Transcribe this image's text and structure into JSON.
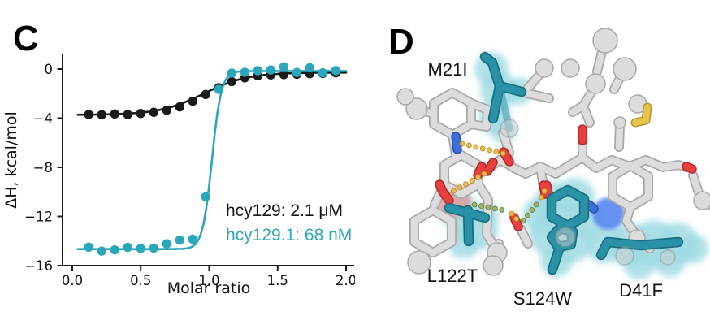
{
  "figure": {
    "panel_c_letter": "C",
    "panel_d_letter": "D"
  },
  "chart_data": {
    "type": "scatter",
    "description": "ITC binding isotherms (integrated heats) with sigmoidal fits",
    "title": "",
    "xlabel": "Molar ratio",
    "ylabel": "ΔH, kcal/mol",
    "xlim": [
      -0.07,
      2.06
    ],
    "ylim": [
      -16,
      1.2
    ],
    "xticks": [
      0,
      0.5,
      1,
      1.5,
      2
    ],
    "xtick_labels": [
      "0.0",
      "0.5",
      "1.0",
      "1.5",
      "2.0"
    ],
    "yticks": [
      0,
      -4,
      -8,
      -12,
      -16
    ],
    "ytick_labels": [
      "0",
      "−4",
      "−8",
      "−12",
      "−16"
    ],
    "grid": false,
    "legend_position": "lower right",
    "series": [
      {
        "name": "hcy129",
        "legend_label": "hcy129: 2.1 μM",
        "kd": "2.1 μM",
        "color": "#1a1a1a",
        "marker": "circle",
        "x": [
          0.12,
          0.215,
          0.31,
          0.405,
          0.5,
          0.595,
          0.69,
          0.785,
          0.88,
          0.975,
          1.07,
          1.165,
          1.26,
          1.355,
          1.45,
          1.545,
          1.64,
          1.735,
          1.83,
          1.925
        ],
        "y": [
          -3.7,
          -3.72,
          -3.66,
          -3.7,
          -3.62,
          -3.52,
          -3.35,
          -3.08,
          -2.62,
          -2.07,
          -1.52,
          -1.02,
          -0.72,
          -0.55,
          -0.48,
          -0.45,
          -0.42,
          -0.38,
          -0.35,
          -0.3
        ],
        "fit_sigmoid": {
          "base": -3.73,
          "amplitude": 3.45,
          "midpoint": 0.96,
          "width": 0.16
        }
      },
      {
        "name": "hcy129.1",
        "legend_label": "hcy129.1: 68 nM",
        "kd": "68 nM",
        "color": "#2aa7ba",
        "marker": "circle",
        "x": [
          0.12,
          0.215,
          0.31,
          0.405,
          0.5,
          0.595,
          0.69,
          0.785,
          0.88,
          0.975,
          1.07,
          1.165,
          1.26,
          1.355,
          1.45,
          1.545,
          1.64,
          1.735,
          1.83,
          1.925
        ],
        "y": [
          -14.5,
          -14.82,
          -14.72,
          -14.52,
          -14.6,
          -14.58,
          -14.22,
          -13.92,
          -13.85,
          -10.4,
          -1.65,
          -0.33,
          -0.26,
          -0.13,
          -0.07,
          0.18,
          -0.28,
          0.1,
          -0.3,
          -0.12
        ],
        "fit_sigmoid": {
          "base": -14.66,
          "amplitude": 14.5,
          "midpoint": 1.02,
          "width": 0.034
        }
      }
    ]
  },
  "structure": {
    "residue_labels": [
      {
        "id": "M21I",
        "label": "M21I"
      },
      {
        "id": "L122T",
        "label": "L122T"
      },
      {
        "id": "S124W",
        "label": "S124W"
      },
      {
        "id": "D41F",
        "label": "D41F"
      }
    ],
    "colors": {
      "highlight_halo": "#9fdbe3",
      "mutant_residue_teal": "#2a92a6",
      "carbon_gray": "#dcdcdc",
      "oxygen_red": "#e84040",
      "nitrogen_blue": "#3d6ede",
      "sulfur_yellow": "#e7c44a",
      "hbond_yellow": "#ecbc45",
      "hbond_green": "#9cb468",
      "clash_red_glow": "#f0807f",
      "blue_patch": "#5f8df0"
    }
  }
}
